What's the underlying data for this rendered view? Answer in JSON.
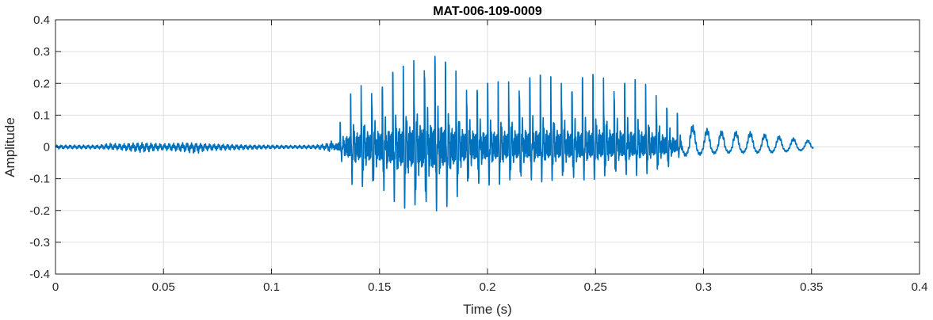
{
  "chart_data": {
    "type": "line",
    "title": "MAT-006-109-0009",
    "xlabel": "Time (s)",
    "ylabel": "Amplitude",
    "xlim": [
      0,
      0.4
    ],
    "ylim": [
      -0.4,
      0.4
    ],
    "xticks": [
      0,
      0.05,
      0.1,
      0.15,
      0.2,
      0.25,
      0.3,
      0.35,
      0.4
    ],
    "xtick_labels": [
      "0",
      "0.05",
      "0.1",
      "0.15",
      "0.2",
      "0.25",
      "0.3",
      "0.35",
      "0.4"
    ],
    "yticks": [
      -0.4,
      -0.3,
      -0.2,
      -0.1,
      0,
      0.1,
      0.2,
      0.3,
      0.4
    ],
    "ytick_labels": [
      "-0.4",
      "-0.3",
      "-0.2",
      "-0.1",
      "0",
      "0.1",
      "0.2",
      "0.3",
      "0.4"
    ],
    "grid": true,
    "series": [
      {
        "color": "#0072BD",
        "x": [
          0,
          0.01,
          0.02,
          0.025,
          0.03,
          0.04,
          0.045,
          0.05,
          0.06,
          0.065,
          0.07,
          0.08,
          0.09,
          0.1,
          0.11,
          0.12,
          0.125,
          0.128,
          0.13,
          0.131,
          0.132,
          0.133,
          0.134,
          0.135,
          0.137,
          0.14,
          0.145,
          0.15,
          0.155,
          0.16,
          0.165,
          0.17,
          0.172,
          0.175,
          0.177,
          0.18,
          0.185,
          0.19,
          0.2,
          0.21,
          0.22,
          0.23,
          0.24,
          0.25,
          0.26,
          0.27,
          0.28,
          0.285,
          0.29,
          0.295,
          0.3,
          0.31,
          0.32,
          0.33,
          0.34,
          0.35,
          0.351
        ],
        "env_pos": [
          0.006,
          0.006,
          0.006,
          0.012,
          0.01,
          0.014,
          0.012,
          0.01,
          0.014,
          0.012,
          0.01,
          0.008,
          0.006,
          0.006,
          0.005,
          0.006,
          0.01,
          0.02,
          0.04,
          0.07,
          0.08,
          0.07,
          0.12,
          0.15,
          0.17,
          0.19,
          0.2,
          0.21,
          0.23,
          0.25,
          0.27,
          0.29,
          0.3,
          0.29,
          0.3,
          0.27,
          0.24,
          0.22,
          0.2,
          0.21,
          0.23,
          0.22,
          0.21,
          0.23,
          0.22,
          0.21,
          0.17,
          0.14,
          0.08,
          0.07,
          0.06,
          0.05,
          0.05,
          0.04,
          0.03,
          0.02,
          0.01
        ],
        "env_neg": [
          -0.006,
          -0.006,
          -0.006,
          -0.008,
          -0.01,
          -0.018,
          -0.014,
          -0.01,
          -0.016,
          -0.022,
          -0.012,
          -0.01,
          -0.008,
          -0.006,
          -0.005,
          -0.006,
          -0.01,
          -0.02,
          -0.04,
          -0.05,
          -0.06,
          -0.08,
          -0.1,
          -0.15,
          -0.17,
          -0.19,
          -0.2,
          -0.21,
          -0.24,
          -0.28,
          -0.3,
          -0.31,
          -0.3,
          -0.32,
          -0.3,
          -0.28,
          -0.25,
          -0.2,
          -0.18,
          -0.17,
          -0.16,
          -0.16,
          -0.16,
          -0.15,
          -0.14,
          -0.13,
          -0.12,
          -0.1,
          -0.03,
          -0.03,
          -0.025,
          -0.02,
          -0.02,
          -0.02,
          -0.015,
          -0.01,
          -0.005
        ]
      }
    ]
  }
}
